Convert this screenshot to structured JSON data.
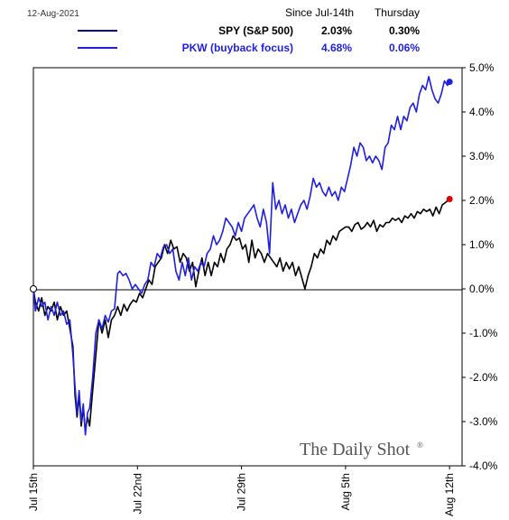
{
  "header": {
    "date": "12-Aug-2021",
    "col_since": "Since Jul-14th",
    "col_day": "Thursday"
  },
  "legend": [
    {
      "name": "SPY (S&P 500)",
      "since": "2.03%",
      "day": "0.30%",
      "color": "#000000",
      "line_color": "#00008B"
    },
    {
      "name": "PKW (buyback focus)",
      "since": "4.68%",
      "day": "0.06%",
      "color": "#1F1FE0",
      "line_color": "#1F1FE0"
    }
  ],
  "watermark": "The Daily Shot",
  "watermark_mark": "®",
  "chart_data": {
    "type": "line",
    "x_ticks": [
      "Jul 15th",
      "Jul 22nd",
      "Jul 29th",
      "Aug 5th",
      "Aug 12th"
    ],
    "xlim": [
      0,
      20.6
    ],
    "y_ticks": [
      "5.0%",
      "4.0%",
      "3.0%",
      "2.0%",
      "1.0%",
      "0.0%",
      "-1.0%",
      "-2.0%",
      "-3.0%",
      "-4.0%"
    ],
    "ylim": [
      -4.0,
      5.0
    ],
    "y_unit": "%",
    "grid": false,
    "zero_line": true,
    "series": [
      {
        "name": "SPY (S&P 500)",
        "color": "#000000",
        "end_marker_color": "#E00000",
        "points": [
          [
            0,
            0
          ],
          [
            0.1,
            -0.3
          ],
          [
            0.25,
            -0.5
          ],
          [
            0.4,
            -0.2
          ],
          [
            0.55,
            -0.6
          ],
          [
            0.7,
            -0.4
          ],
          [
            0.85,
            -0.5
          ],
          [
            1.0,
            -0.3
          ],
          [
            1.15,
            -0.7
          ],
          [
            1.3,
            -0.4
          ],
          [
            1.45,
            -0.6
          ],
          [
            1.6,
            -0.5
          ],
          [
            1.75,
            -0.9
          ],
          [
            1.9,
            -1.3
          ],
          [
            2.0,
            -2.4
          ],
          [
            2.1,
            -2.9
          ],
          [
            2.2,
            -2.4
          ],
          [
            2.3,
            -3.1
          ],
          [
            2.4,
            -2.7
          ],
          [
            2.5,
            -3.2
          ],
          [
            2.6,
            -2.9
          ],
          [
            2.7,
            -3.1
          ],
          [
            2.85,
            -2.3
          ],
          [
            3.0,
            -1.5
          ],
          [
            3.15,
            -0.7
          ],
          [
            3.3,
            -1.0
          ],
          [
            3.45,
            -0.7
          ],
          [
            3.6,
            -1.1
          ],
          [
            3.75,
            -0.7
          ],
          [
            3.9,
            -0.6
          ],
          [
            4.05,
            -0.4
          ],
          [
            4.2,
            -0.6
          ],
          [
            4.35,
            -0.35
          ],
          [
            4.5,
            -0.5
          ],
          [
            4.65,
            -0.35
          ],
          [
            4.8,
            -0.25
          ],
          [
            4.95,
            -0.3
          ],
          [
            5.1,
            -0.1
          ],
          [
            5.25,
            -0.2
          ],
          [
            5.4,
            0.0
          ],
          [
            5.55,
            0.2
          ],
          [
            5.7,
            0.1
          ],
          [
            5.85,
            0.5
          ],
          [
            6.0,
            0.6
          ],
          [
            6.15,
            0.7
          ],
          [
            6.3,
            1.0
          ],
          [
            6.45,
            0.8
          ],
          [
            6.6,
            1.1
          ],
          [
            6.75,
            0.9
          ],
          [
            6.9,
            0.95
          ],
          [
            7.05,
            0.6
          ],
          [
            7.2,
            0.8
          ],
          [
            7.35,
            0.7
          ],
          [
            7.5,
            0.4
          ],
          [
            7.65,
            0.6
          ],
          [
            7.8,
            0.05
          ],
          [
            7.95,
            0.4
          ],
          [
            8.1,
            0.7
          ],
          [
            8.25,
            0.3
          ],
          [
            8.4,
            0.6
          ],
          [
            8.55,
            0.3
          ],
          [
            8.7,
            0.6
          ],
          [
            8.85,
            0.5
          ],
          [
            9.0,
            0.8
          ],
          [
            9.15,
            0.6
          ],
          [
            9.3,
            0.9
          ],
          [
            9.45,
            1.0
          ],
          [
            9.6,
            1.2
          ],
          [
            9.75,
            1.1
          ],
          [
            9.9,
            1.15
          ],
          [
            10.05,
            0.9
          ],
          [
            10.2,
            1.0
          ],
          [
            10.35,
            0.6
          ],
          [
            10.5,
            1.1
          ],
          [
            10.65,
            0.7
          ],
          [
            10.8,
            0.9
          ],
          [
            10.95,
            0.8
          ],
          [
            11.1,
            0.6
          ],
          [
            11.25,
            0.8
          ],
          [
            11.4,
            0.7
          ],
          [
            11.55,
            0.6
          ],
          [
            11.7,
            0.5
          ],
          [
            11.85,
            0.7
          ],
          [
            12.0,
            0.4
          ],
          [
            12.15,
            0.6
          ],
          [
            12.3,
            0.45
          ],
          [
            12.45,
            0.6
          ],
          [
            12.6,
            0.3
          ],
          [
            12.75,
            0.5
          ],
          [
            12.9,
            0.25
          ],
          [
            13.05,
            0.0
          ],
          [
            13.2,
            0.3
          ],
          [
            13.35,
            0.5
          ],
          [
            13.5,
            0.8
          ],
          [
            13.65,
            0.7
          ],
          [
            13.8,
            0.9
          ],
          [
            13.95,
            0.8
          ],
          [
            14.1,
            1.1
          ],
          [
            14.25,
            1.0
          ],
          [
            14.4,
            1.2
          ],
          [
            14.55,
            1.1
          ],
          [
            14.7,
            1.3
          ],
          [
            14.85,
            1.35
          ],
          [
            15.0,
            1.4
          ],
          [
            15.15,
            1.4
          ],
          [
            15.3,
            1.3
          ],
          [
            15.45,
            1.45
          ],
          [
            15.6,
            1.5
          ],
          [
            15.75,
            1.35
          ],
          [
            15.9,
            1.4
          ],
          [
            16.05,
            1.5
          ],
          [
            16.2,
            1.4
          ],
          [
            16.35,
            1.55
          ],
          [
            16.5,
            1.3
          ],
          [
            16.65,
            1.45
          ],
          [
            16.8,
            1.4
          ],
          [
            16.95,
            1.5
          ],
          [
            17.1,
            1.5
          ],
          [
            17.25,
            1.6
          ],
          [
            17.4,
            1.55
          ],
          [
            17.55,
            1.6
          ],
          [
            17.7,
            1.5
          ],
          [
            17.85,
            1.65
          ],
          [
            18.0,
            1.6
          ],
          [
            18.15,
            1.7
          ],
          [
            18.3,
            1.6
          ],
          [
            18.45,
            1.75
          ],
          [
            18.6,
            1.7
          ],
          [
            18.75,
            1.8
          ],
          [
            18.9,
            1.75
          ],
          [
            19.05,
            1.8
          ],
          [
            19.2,
            1.65
          ],
          [
            19.35,
            1.85
          ],
          [
            19.5,
            1.7
          ],
          [
            19.65,
            1.9
          ],
          [
            19.8,
            1.95
          ],
          [
            20.0,
            2.03
          ]
        ]
      },
      {
        "name": "PKW (buyback focus)",
        "color": "#1F1FE0",
        "end_marker_color": "#1F1FE0",
        "points": [
          [
            0,
            0
          ],
          [
            0.1,
            -0.5
          ],
          [
            0.25,
            -0.2
          ],
          [
            0.4,
            -0.4
          ],
          [
            0.55,
            -0.3
          ],
          [
            0.7,
            -0.7
          ],
          [
            0.85,
            -0.4
          ],
          [
            1.0,
            -0.6
          ],
          [
            1.15,
            -0.3
          ],
          [
            1.3,
            -0.6
          ],
          [
            1.45,
            -0.5
          ],
          [
            1.6,
            -0.8
          ],
          [
            1.75,
            -0.7
          ],
          [
            1.9,
            -1.5
          ],
          [
            2.0,
            -2.2
          ],
          [
            2.1,
            -2.8
          ],
          [
            2.2,
            -2.3
          ],
          [
            2.3,
            -3.0
          ],
          [
            2.4,
            -2.6
          ],
          [
            2.5,
            -3.3
          ],
          [
            2.6,
            -2.8
          ],
          [
            2.7,
            -2.7
          ],
          [
            2.85,
            -2.0
          ],
          [
            3.0,
            -1.0
          ],
          [
            3.15,
            -0.7
          ],
          [
            3.3,
            -0.9
          ],
          [
            3.45,
            -0.6
          ],
          [
            3.6,
            -0.75
          ],
          [
            3.75,
            -0.5
          ],
          [
            3.9,
            -0.45
          ],
          [
            4.05,
            0.35
          ],
          [
            4.15,
            0.4
          ],
          [
            4.3,
            0.3
          ],
          [
            4.45,
            0.35
          ],
          [
            4.6,
            0.2
          ],
          [
            4.75,
            0.0
          ],
          [
            4.9,
            0.1
          ],
          [
            5.05,
            0.0
          ],
          [
            5.2,
            -0.1
          ],
          [
            5.35,
            0.1
          ],
          [
            5.5,
            0.2
          ],
          [
            5.65,
            0.6
          ],
          [
            5.8,
            0.5
          ],
          [
            5.95,
            0.8
          ],
          [
            6.1,
            0.7
          ],
          [
            6.25,
            0.95
          ],
          [
            6.4,
            1.0
          ],
          [
            6.55,
            0.8
          ],
          [
            6.7,
            0.9
          ],
          [
            6.85,
            0.4
          ],
          [
            7.0,
            0.2
          ],
          [
            7.15,
            0.6
          ],
          [
            7.3,
            0.3
          ],
          [
            7.45,
            0.7
          ],
          [
            7.6,
            0.2
          ],
          [
            7.75,
            0.5
          ],
          [
            7.9,
            0.4
          ],
          [
            8.05,
            0.6
          ],
          [
            8.2,
            0.5
          ],
          [
            8.35,
            0.8
          ],
          [
            8.5,
            0.9
          ],
          [
            8.65,
            1.2
          ],
          [
            8.8,
            1.0
          ],
          [
            8.95,
            1.1
          ],
          [
            9.1,
            1.3
          ],
          [
            9.25,
            1.6
          ],
          [
            9.4,
            1.5
          ],
          [
            9.55,
            1.4
          ],
          [
            9.7,
            1.2
          ],
          [
            9.85,
            1.5
          ],
          [
            10.0,
            1.3
          ],
          [
            10.15,
            1.6
          ],
          [
            10.3,
            1.7
          ],
          [
            10.45,
            1.8
          ],
          [
            10.6,
            1.9
          ],
          [
            10.75,
            1.6
          ],
          [
            10.9,
            1.4
          ],
          [
            11.05,
            1.8
          ],
          [
            11.2,
            1.5
          ],
          [
            11.35,
            0.8
          ],
          [
            11.5,
            2.4
          ],
          [
            11.65,
            1.8
          ],
          [
            11.8,
            2.0
          ],
          [
            11.95,
            1.7
          ],
          [
            12.1,
            1.9
          ],
          [
            12.25,
            1.6
          ],
          [
            12.4,
            1.8
          ],
          [
            12.55,
            1.5
          ],
          [
            12.7,
            1.7
          ],
          [
            12.85,
            1.9
          ],
          [
            13.0,
            2.0
          ],
          [
            13.15,
            1.8
          ],
          [
            13.3,
            2.1
          ],
          [
            13.45,
            2.5
          ],
          [
            13.6,
            2.3
          ],
          [
            13.75,
            2.4
          ],
          [
            13.9,
            2.2
          ],
          [
            14.05,
            2.1
          ],
          [
            14.2,
            2.3
          ],
          [
            14.35,
            2.1
          ],
          [
            14.5,
            2.2
          ],
          [
            14.65,
            2.0
          ],
          [
            14.8,
            2.3
          ],
          [
            14.95,
            2.2
          ],
          [
            15.1,
            2.5
          ],
          [
            15.25,
            2.8
          ],
          [
            15.4,
            3.2
          ],
          [
            15.55,
            3.0
          ],
          [
            15.7,
            3.3
          ],
          [
            15.85,
            3.2
          ],
          [
            16.0,
            2.9
          ],
          [
            16.15,
            3.0
          ],
          [
            16.3,
            2.85
          ],
          [
            16.45,
            3.0
          ],
          [
            16.6,
            2.9
          ],
          [
            16.75,
            2.7
          ],
          [
            16.9,
            3.2
          ],
          [
            17.05,
            3.3
          ],
          [
            17.2,
            3.7
          ],
          [
            17.35,
            3.6
          ],
          [
            17.5,
            3.9
          ],
          [
            17.65,
            3.6
          ],
          [
            17.8,
            3.9
          ],
          [
            17.95,
            3.8
          ],
          [
            18.1,
            4.1
          ],
          [
            18.25,
            4.2
          ],
          [
            18.4,
            4.0
          ],
          [
            18.55,
            4.4
          ],
          [
            18.7,
            4.6
          ],
          [
            18.85,
            4.5
          ],
          [
            19.0,
            4.8
          ],
          [
            19.15,
            4.5
          ],
          [
            19.3,
            4.3
          ],
          [
            19.45,
            4.2
          ],
          [
            19.6,
            4.4
          ],
          [
            19.75,
            4.7
          ],
          [
            19.9,
            4.6
          ],
          [
            20.0,
            4.68
          ]
        ]
      }
    ]
  }
}
